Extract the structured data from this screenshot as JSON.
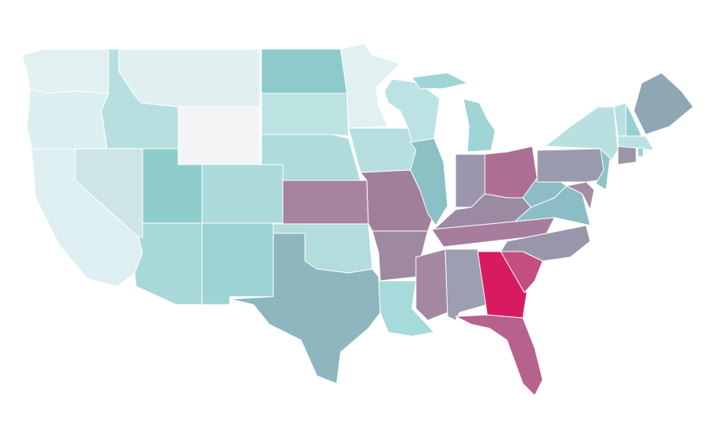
{
  "map": {
    "region_colors": [
      "#e2f0f1",
      "#dceff0",
      "#ddeff1",
      "#cde5e8",
      "#b8dfe0",
      "#e0f0f1",
      "#f3f4f5",
      "#8ecdcc",
      "#acd9d9",
      "#a8d8d8",
      "#9ed3d3",
      "#8ecacb",
      "#bde3e3",
      "#aedcdc",
      "#a7839f",
      "#b3dcdc",
      "#8fb5bf",
      "#e1f1f2",
      "#b8dfe0",
      "#a17f99",
      "#9f89a1",
      "#a7dadb",
      "#bde2e3",
      "#8bc1c5",
      "#9fd5d6",
      "#9fd5d6",
      "#9b96ab",
      "#ac6f93",
      "#9c8aa2",
      "#a67d9c",
      "#a488a2",
      "#9b9faf",
      "#d81b60",
      "#b7618d",
      "#c24f80",
      "#9996ab",
      "#8cbcc5",
      "#8cbcc5",
      "#9a9aaf",
      "#b9e0e1",
      "#a88aa3",
      "#8dc3c9",
      "#b9e0e1",
      "#96d0d0",
      "#8fa7b5",
      "#bbe1e3",
      "#9b95aa",
      "#9ed3d3"
    ]
  }
}
